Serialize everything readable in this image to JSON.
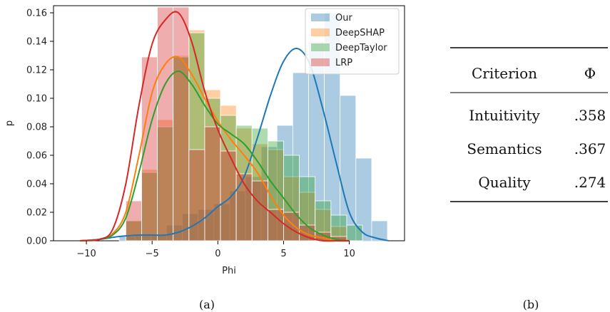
{
  "chart_data": [
    {
      "type": "histogram",
      "panel_label": "(a)",
      "xlabel": "Phi",
      "ylabel": "p",
      "xlim": [
        -12.5,
        14.2
      ],
      "ylim": [
        0,
        0.165
      ],
      "xticks": [
        -10,
        -5,
        0,
        5,
        10
      ],
      "yticks": [
        0.0,
        0.02,
        0.04,
        0.06,
        0.08,
        0.1,
        0.12,
        0.14,
        0.16
      ],
      "grid": false,
      "legend_position": "top-right",
      "series": [
        {
          "name": "Our",
          "color": "#1f77b4",
          "bin_start": -7.5,
          "bin_width": 1.2,
          "heights": [
            0.003,
            0.004,
            0.004,
            0.011,
            0.019,
            0.022,
            0.026,
            0.035,
            0.045,
            0.066,
            0.081,
            0.118,
            0.14,
            0.16,
            0.102,
            0.058,
            0.014
          ],
          "kde_x": [
            -10.5,
            -9,
            -7.5,
            -6,
            -5,
            -4,
            -3,
            -2,
            -1,
            0,
            1,
            2,
            3,
            4,
            5,
            6,
            7,
            8,
            9,
            10,
            11,
            12,
            13
          ],
          "kde_y": [
            0.0,
            0.001,
            0.003,
            0.004,
            0.004,
            0.004,
            0.006,
            0.01,
            0.016,
            0.024,
            0.031,
            0.045,
            0.072,
            0.102,
            0.126,
            0.135,
            0.124,
            0.092,
            0.055,
            0.02,
            0.006,
            0.002,
            0.0
          ]
        },
        {
          "name": "DeepSHAP",
          "color": "#ff7f0e",
          "bin_start": -7.0,
          "bin_width": 1.2,
          "heights": [
            0.014,
            0.05,
            0.085,
            0.13,
            0.148,
            0.106,
            0.095,
            0.079,
            0.068,
            0.064,
            0.045,
            0.034,
            0.022,
            0.01
          ],
          "kde_x": [
            -10.5,
            -9,
            -8,
            -7,
            -6,
            -5,
            -4,
            -3,
            -2,
            -1,
            0,
            1,
            2,
            3,
            4,
            5,
            6,
            7,
            8,
            9,
            10
          ],
          "kde_y": [
            0.0,
            0.001,
            0.005,
            0.02,
            0.06,
            0.104,
            0.124,
            0.129,
            0.117,
            0.1,
            0.084,
            0.071,
            0.06,
            0.048,
            0.032,
            0.018,
            0.009,
            0.004,
            0.002,
            0.0,
            0.0
          ]
        },
        {
          "name": "DeepTaylor",
          "color": "#2ca02c",
          "bin_start": -7.0,
          "bin_width": 1.2,
          "heights": [
            0.014,
            0.048,
            0.08,
            0.129,
            0.146,
            0.1,
            0.088,
            0.081,
            0.079,
            0.07,
            0.06,
            0.045,
            0.028,
            0.018,
            0.011
          ],
          "kde_x": [
            -10.5,
            -9,
            -8,
            -7,
            -6,
            -5,
            -4,
            -3,
            -2,
            -1,
            0,
            1,
            2,
            3,
            4,
            5,
            6,
            7,
            8,
            9,
            10
          ],
          "kde_y": [
            0.0,
            0.001,
            0.004,
            0.016,
            0.048,
            0.085,
            0.11,
            0.119,
            0.11,
            0.095,
            0.082,
            0.075,
            0.068,
            0.056,
            0.042,
            0.03,
            0.018,
            0.009,
            0.004,
            0.001,
            0.0
          ]
        },
        {
          "name": "LRP",
          "color": "#d62728",
          "bin_start": -7.0,
          "bin_width": 1.2,
          "heights": [
            0.028,
            0.129,
            0.164,
            0.164,
            0.064,
            0.08,
            0.063,
            0.047,
            0.042,
            0.022,
            0.02,
            0.011,
            0.006,
            0.003
          ],
          "kde_x": [
            -10.5,
            -9,
            -8,
            -7,
            -6,
            -5,
            -4,
            -3,
            -2,
            -1,
            0,
            1,
            2,
            3,
            4,
            5,
            6,
            7,
            8,
            9,
            10
          ],
          "kde_y": [
            0.0,
            0.001,
            0.008,
            0.04,
            0.095,
            0.138,
            0.155,
            0.16,
            0.14,
            0.105,
            0.078,
            0.058,
            0.04,
            0.028,
            0.02,
            0.012,
            0.006,
            0.002,
            0.0,
            0.0,
            0.0
          ]
        }
      ]
    },
    {
      "type": "table",
      "panel_label": "(b)",
      "header": [
        "Criterion",
        "Φ"
      ],
      "rows": [
        [
          "Intuitivity",
          ".358"
        ],
        [
          "Semantics",
          ".367"
        ],
        [
          "Quality",
          ".274"
        ]
      ]
    }
  ]
}
